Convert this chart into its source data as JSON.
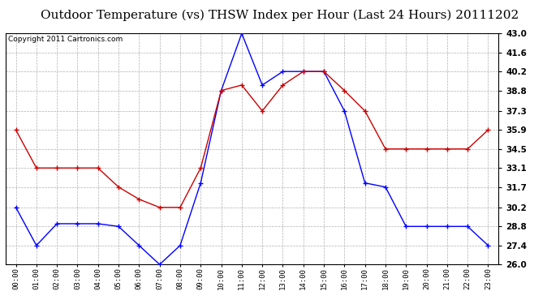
{
  "title": "Outdoor Temperature (vs) THSW Index per Hour (Last 24 Hours) 20111202",
  "copyright": "Copyright 2011 Cartronics.com",
  "hours": [
    "00:00",
    "01:00",
    "02:00",
    "03:00",
    "04:00",
    "05:00",
    "06:00",
    "07:00",
    "08:00",
    "09:00",
    "10:00",
    "11:00",
    "12:00",
    "13:00",
    "14:00",
    "15:00",
    "16:00",
    "17:00",
    "18:00",
    "19:00",
    "20:00",
    "21:00",
    "22:00",
    "23:00"
  ],
  "temp_blue": [
    30.2,
    27.4,
    29.0,
    29.0,
    29.0,
    28.8,
    27.4,
    26.0,
    27.4,
    32.0,
    38.8,
    43.0,
    39.2,
    40.2,
    40.2,
    40.2,
    37.3,
    32.0,
    31.7,
    28.8,
    28.8,
    28.8,
    28.8,
    27.4
  ],
  "thsw_red": [
    35.9,
    33.1,
    33.1,
    33.1,
    33.1,
    31.7,
    30.8,
    30.2,
    30.2,
    33.1,
    38.8,
    39.2,
    37.3,
    39.2,
    40.2,
    40.2,
    38.8,
    37.3,
    34.5,
    34.5,
    34.5,
    34.5,
    34.5,
    35.9
  ],
  "ylim_min": 26.0,
  "ylim_max": 43.0,
  "yticks": [
    26.0,
    27.4,
    28.8,
    30.2,
    31.7,
    33.1,
    34.5,
    35.9,
    37.3,
    38.8,
    40.2,
    41.6,
    43.0
  ],
  "blue_color": "#0000ff",
  "red_color": "#cc0000",
  "background_color": "#ffffff",
  "grid_color": "#b0b0b0",
  "title_fontsize": 11,
  "copyright_fontsize": 6.5
}
